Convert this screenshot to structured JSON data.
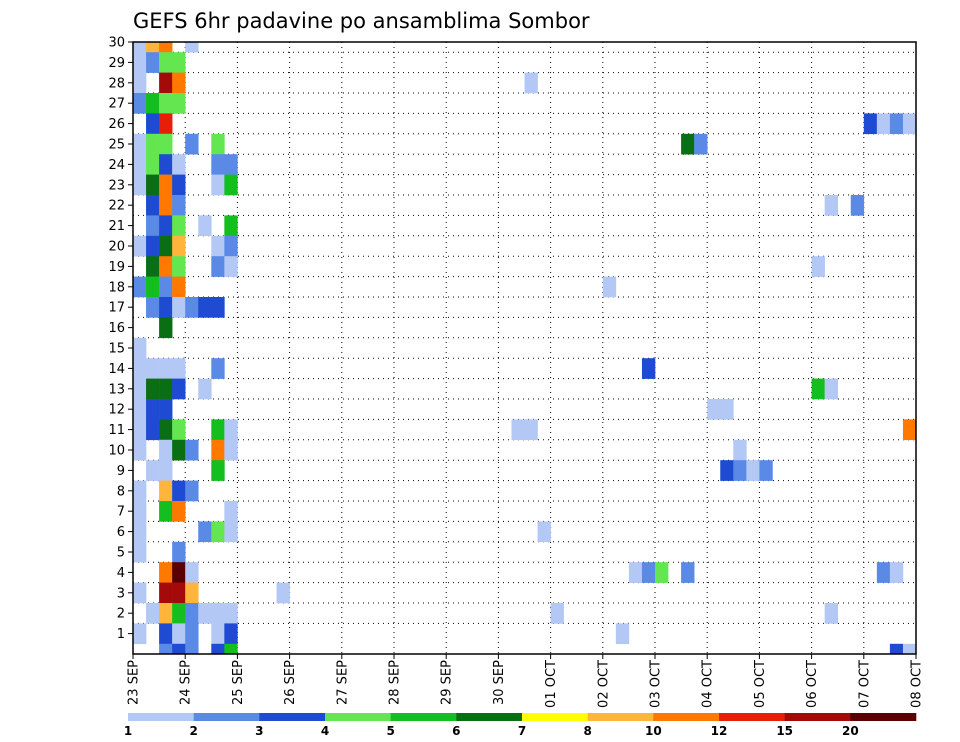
{
  "chart_data": {
    "type": "heatmap",
    "title": "GEFS 6hr padavine po ansamblima Sombor",
    "xlabel": "",
    "ylabel": "",
    "x_tick_labels": [
      "23 SEP",
      "24 SEP",
      "25 SEP",
      "26 SEP",
      "27 SEP",
      "28 SEP",
      "29 SEP",
      "30 SEP",
      "01 OCT",
      "02 OCT",
      "03 OCT",
      "04 OCT",
      "05 OCT",
      "06 OCT",
      "07 OCT",
      "08 OCT"
    ],
    "xlim": [
      0,
      60
    ],
    "x_unit": "6-hour steps from 23 SEP",
    "y_tick_labels": [
      1,
      2,
      3,
      4,
      5,
      6,
      7,
      8,
      9,
      10,
      11,
      12,
      13,
      14,
      15,
      16,
      17,
      18,
      19,
      20,
      21,
      22,
      23,
      24,
      25,
      26,
      27,
      28,
      29,
      30
    ],
    "ylim": [
      0,
      30
    ],
    "grid": true,
    "legend": {
      "placement": "bottom",
      "labels": [
        "1",
        "2",
        "3",
        "4",
        "5",
        "6",
        "7",
        "8",
        "10",
        "12",
        "15",
        "20"
      ],
      "colors": [
        "#b4c8f5",
        "#5a8ae6",
        "#1e4bd2",
        "#64e650",
        "#14be1e",
        "#0a6e14",
        "#ffff00",
        "#ffb43c",
        "#ff7800",
        "#e61e0a",
        "#a50a0a",
        "#5a0000"
      ]
    },
    "cells": [
      {
        "x": 1,
        "y": 30,
        "v": 1
      },
      {
        "x": 2,
        "y": 30,
        "v": 8
      },
      {
        "x": 3,
        "y": 30,
        "v": 10
      },
      {
        "x": 5,
        "y": 30,
        "v": 1
      },
      {
        "x": 1,
        "y": 29,
        "v": 1
      },
      {
        "x": 2,
        "y": 29,
        "v": 2
      },
      {
        "x": 3,
        "y": 29,
        "v": 4
      },
      {
        "x": 4,
        "y": 29,
        "v": 4
      },
      {
        "x": 1,
        "y": 28,
        "v": 1
      },
      {
        "x": 3,
        "y": 28,
        "v": 15
      },
      {
        "x": 4,
        "y": 28,
        "v": 10
      },
      {
        "x": 31,
        "y": 28,
        "v": 1
      },
      {
        "x": 1,
        "y": 27,
        "v": 2
      },
      {
        "x": 2,
        "y": 27,
        "v": 5
      },
      {
        "x": 3,
        "y": 27,
        "v": 4
      },
      {
        "x": 4,
        "y": 27,
        "v": 4
      },
      {
        "x": 2,
        "y": 26,
        "v": 3
      },
      {
        "x": 3,
        "y": 26,
        "v": 12
      },
      {
        "x": 57,
        "y": 26,
        "v": 3
      },
      {
        "x": 58,
        "y": 26,
        "v": 1
      },
      {
        "x": 59,
        "y": 26,
        "v": 2
      },
      {
        "x": 60,
        "y": 26,
        "v": 1
      },
      {
        "x": 1,
        "y": 25,
        "v": 1
      },
      {
        "x": 2,
        "y": 25,
        "v": 4
      },
      {
        "x": 3,
        "y": 25,
        "v": 4
      },
      {
        "x": 5,
        "y": 25,
        "v": 2
      },
      {
        "x": 7,
        "y": 25,
        "v": 4
      },
      {
        "x": 43,
        "y": 25,
        "v": 6
      },
      {
        "x": 44,
        "y": 25,
        "v": 2
      },
      {
        "x": 1,
        "y": 24,
        "v": 1
      },
      {
        "x": 2,
        "y": 24,
        "v": 4
      },
      {
        "x": 3,
        "y": 24,
        "v": 3
      },
      {
        "x": 4,
        "y": 24,
        "v": 1
      },
      {
        "x": 7,
        "y": 24,
        "v": 2
      },
      {
        "x": 8,
        "y": 24,
        "v": 2
      },
      {
        "x": 1,
        "y": 23,
        "v": 1
      },
      {
        "x": 2,
        "y": 23,
        "v": 6
      },
      {
        "x": 3,
        "y": 23,
        "v": 10
      },
      {
        "x": 4,
        "y": 23,
        "v": 3
      },
      {
        "x": 7,
        "y": 23,
        "v": 1
      },
      {
        "x": 8,
        "y": 23,
        "v": 5
      },
      {
        "x": 2,
        "y": 22,
        "v": 3
      },
      {
        "x": 3,
        "y": 22,
        "v": 10
      },
      {
        "x": 4,
        "y": 22,
        "v": 2
      },
      {
        "x": 54,
        "y": 22,
        "v": 1
      },
      {
        "x": 56,
        "y": 22,
        "v": 2
      },
      {
        "x": 2,
        "y": 21,
        "v": 2
      },
      {
        "x": 3,
        "y": 21,
        "v": 3
      },
      {
        "x": 4,
        "y": 21,
        "v": 4
      },
      {
        "x": 6,
        "y": 21,
        "v": 1
      },
      {
        "x": 8,
        "y": 21,
        "v": 5
      },
      {
        "x": 1,
        "y": 20,
        "v": 1
      },
      {
        "x": 2,
        "y": 20,
        "v": 3
      },
      {
        "x": 3,
        "y": 20,
        "v": 6
      },
      {
        "x": 4,
        "y": 20,
        "v": 8
      },
      {
        "x": 7,
        "y": 20,
        "v": 1
      },
      {
        "x": 8,
        "y": 20,
        "v": 2
      },
      {
        "x": 2,
        "y": 19,
        "v": 6
      },
      {
        "x": 3,
        "y": 19,
        "v": 10
      },
      {
        "x": 4,
        "y": 19,
        "v": 4
      },
      {
        "x": 7,
        "y": 19,
        "v": 2
      },
      {
        "x": 8,
        "y": 19,
        "v": 1
      },
      {
        "x": 53,
        "y": 19,
        "v": 1
      },
      {
        "x": 1,
        "y": 18,
        "v": 2
      },
      {
        "x": 2,
        "y": 18,
        "v": 5
      },
      {
        "x": 3,
        "y": 18,
        "v": 2
      },
      {
        "x": 4,
        "y": 18,
        "v": 10
      },
      {
        "x": 37,
        "y": 18,
        "v": 1
      },
      {
        "x": 2,
        "y": 17,
        "v": 2
      },
      {
        "x": 3,
        "y": 17,
        "v": 3
      },
      {
        "x": 4,
        "y": 17,
        "v": 1
      },
      {
        "x": 5,
        "y": 17,
        "v": 2
      },
      {
        "x": 6,
        "y": 17,
        "v": 3
      },
      {
        "x": 7,
        "y": 17,
        "v": 3
      },
      {
        "x": 3,
        "y": 16,
        "v": 6
      },
      {
        "x": 1,
        "y": 15,
        "v": 1
      },
      {
        "x": 1,
        "y": 14,
        "v": 1
      },
      {
        "x": 2,
        "y": 14,
        "v": 1
      },
      {
        "x": 3,
        "y": 14,
        "v": 1
      },
      {
        "x": 4,
        "y": 14,
        "v": 1
      },
      {
        "x": 7,
        "y": 14,
        "v": 2
      },
      {
        "x": 40,
        "y": 14,
        "v": 3
      },
      {
        "x": 1,
        "y": 13,
        "v": 1
      },
      {
        "x": 2,
        "y": 13,
        "v": 6
      },
      {
        "x": 3,
        "y": 13,
        "v": 6
      },
      {
        "x": 4,
        "y": 13,
        "v": 3
      },
      {
        "x": 6,
        "y": 13,
        "v": 1
      },
      {
        "x": 53,
        "y": 13,
        "v": 5
      },
      {
        "x": 54,
        "y": 13,
        "v": 1
      },
      {
        "x": 1,
        "y": 12,
        "v": 1
      },
      {
        "x": 2,
        "y": 12,
        "v": 3
      },
      {
        "x": 3,
        "y": 12,
        "v": 3
      },
      {
        "x": 45,
        "y": 12,
        "v": 1
      },
      {
        "x": 46,
        "y": 12,
        "v": 1
      },
      {
        "x": 1,
        "y": 11,
        "v": 1
      },
      {
        "x": 2,
        "y": 11,
        "v": 3
      },
      {
        "x": 3,
        "y": 11,
        "v": 6
      },
      {
        "x": 4,
        "y": 11,
        "v": 4
      },
      {
        "x": 7,
        "y": 11,
        "v": 5
      },
      {
        "x": 8,
        "y": 11,
        "v": 1
      },
      {
        "x": 30,
        "y": 11,
        "v": 1
      },
      {
        "x": 31,
        "y": 11,
        "v": 1
      },
      {
        "x": 60,
        "y": 11,
        "v": 10
      },
      {
        "x": 1,
        "y": 10,
        "v": 1
      },
      {
        "x": 3,
        "y": 10,
        "v": 1
      },
      {
        "x": 4,
        "y": 10,
        "v": 6
      },
      {
        "x": 5,
        "y": 10,
        "v": 2
      },
      {
        "x": 7,
        "y": 10,
        "v": 10
      },
      {
        "x": 8,
        "y": 10,
        "v": 1
      },
      {
        "x": 47,
        "y": 10,
        "v": 1
      },
      {
        "x": 2,
        "y": 9,
        "v": 1
      },
      {
        "x": 3,
        "y": 9,
        "v": 1
      },
      {
        "x": 7,
        "y": 9,
        "v": 5
      },
      {
        "x": 46,
        "y": 9,
        "v": 3
      },
      {
        "x": 47,
        "y": 9,
        "v": 2
      },
      {
        "x": 48,
        "y": 9,
        "v": 1
      },
      {
        "x": 49,
        "y": 9,
        "v": 2
      },
      {
        "x": 1,
        "y": 8,
        "v": 1
      },
      {
        "x": 3,
        "y": 8,
        "v": 8
      },
      {
        "x": 4,
        "y": 8,
        "v": 3
      },
      {
        "x": 5,
        "y": 8,
        "v": 2
      },
      {
        "x": 1,
        "y": 7,
        "v": 1
      },
      {
        "x": 3,
        "y": 7,
        "v": 5
      },
      {
        "x": 4,
        "y": 7,
        "v": 10
      },
      {
        "x": 8,
        "y": 7,
        "v": 1
      },
      {
        "x": 1,
        "y": 6,
        "v": 1
      },
      {
        "x": 6,
        "y": 6,
        "v": 2
      },
      {
        "x": 7,
        "y": 6,
        "v": 4
      },
      {
        "x": 8,
        "y": 6,
        "v": 1
      },
      {
        "x": 32,
        "y": 6,
        "v": 1
      },
      {
        "x": 1,
        "y": 5,
        "v": 1
      },
      {
        "x": 4,
        "y": 5,
        "v": 2
      },
      {
        "x": 3,
        "y": 4,
        "v": 10
      },
      {
        "x": 4,
        "y": 4,
        "v": 20
      },
      {
        "x": 5,
        "y": 4,
        "v": 1
      },
      {
        "x": 39,
        "y": 4,
        "v": 1
      },
      {
        "x": 40,
        "y": 4,
        "v": 2
      },
      {
        "x": 41,
        "y": 4,
        "v": 4
      },
      {
        "x": 43,
        "y": 4,
        "v": 2
      },
      {
        "x": 58,
        "y": 4,
        "v": 2
      },
      {
        "x": 59,
        "y": 4,
        "v": 1
      },
      {
        "x": 1,
        "y": 3,
        "v": 1
      },
      {
        "x": 3,
        "y": 3,
        "v": 15
      },
      {
        "x": 4,
        "y": 3,
        "v": 15
      },
      {
        "x": 5,
        "y": 3,
        "v": 8
      },
      {
        "x": 12,
        "y": 3,
        "v": 1
      },
      {
        "x": 2,
        "y": 2,
        "v": 1
      },
      {
        "x": 3,
        "y": 2,
        "v": 8
      },
      {
        "x": 4,
        "y": 2,
        "v": 5
      },
      {
        "x": 5,
        "y": 2,
        "v": 2
      },
      {
        "x": 6,
        "y": 2,
        "v": 1
      },
      {
        "x": 7,
        "y": 2,
        "v": 1
      },
      {
        "x": 8,
        "y": 2,
        "v": 1
      },
      {
        "x": 33,
        "y": 2,
        "v": 1
      },
      {
        "x": 54,
        "y": 2,
        "v": 1
      },
      {
        "x": 1,
        "y": 1,
        "v": 1
      },
      {
        "x": 3,
        "y": 1,
        "v": 3
      },
      {
        "x": 4,
        "y": 1,
        "v": 1
      },
      {
        "x": 5,
        "y": 1,
        "v": 2
      },
      {
        "x": 7,
        "y": 1,
        "v": 1
      },
      {
        "x": 8,
        "y": 1,
        "v": 3
      },
      {
        "x": 38,
        "y": 1,
        "v": 1
      },
      {
        "x": 3,
        "y": 0,
        "v": 2
      },
      {
        "x": 4,
        "y": 0,
        "v": 3
      },
      {
        "x": 5,
        "y": 0,
        "v": 2
      },
      {
        "x": 7,
        "y": 0,
        "v": 3
      },
      {
        "x": 8,
        "y": 0,
        "v": 5
      },
      {
        "x": 59,
        "y": 0,
        "v": 3
      },
      {
        "x": 60,
        "y": 0,
        "v": 1
      }
    ]
  }
}
